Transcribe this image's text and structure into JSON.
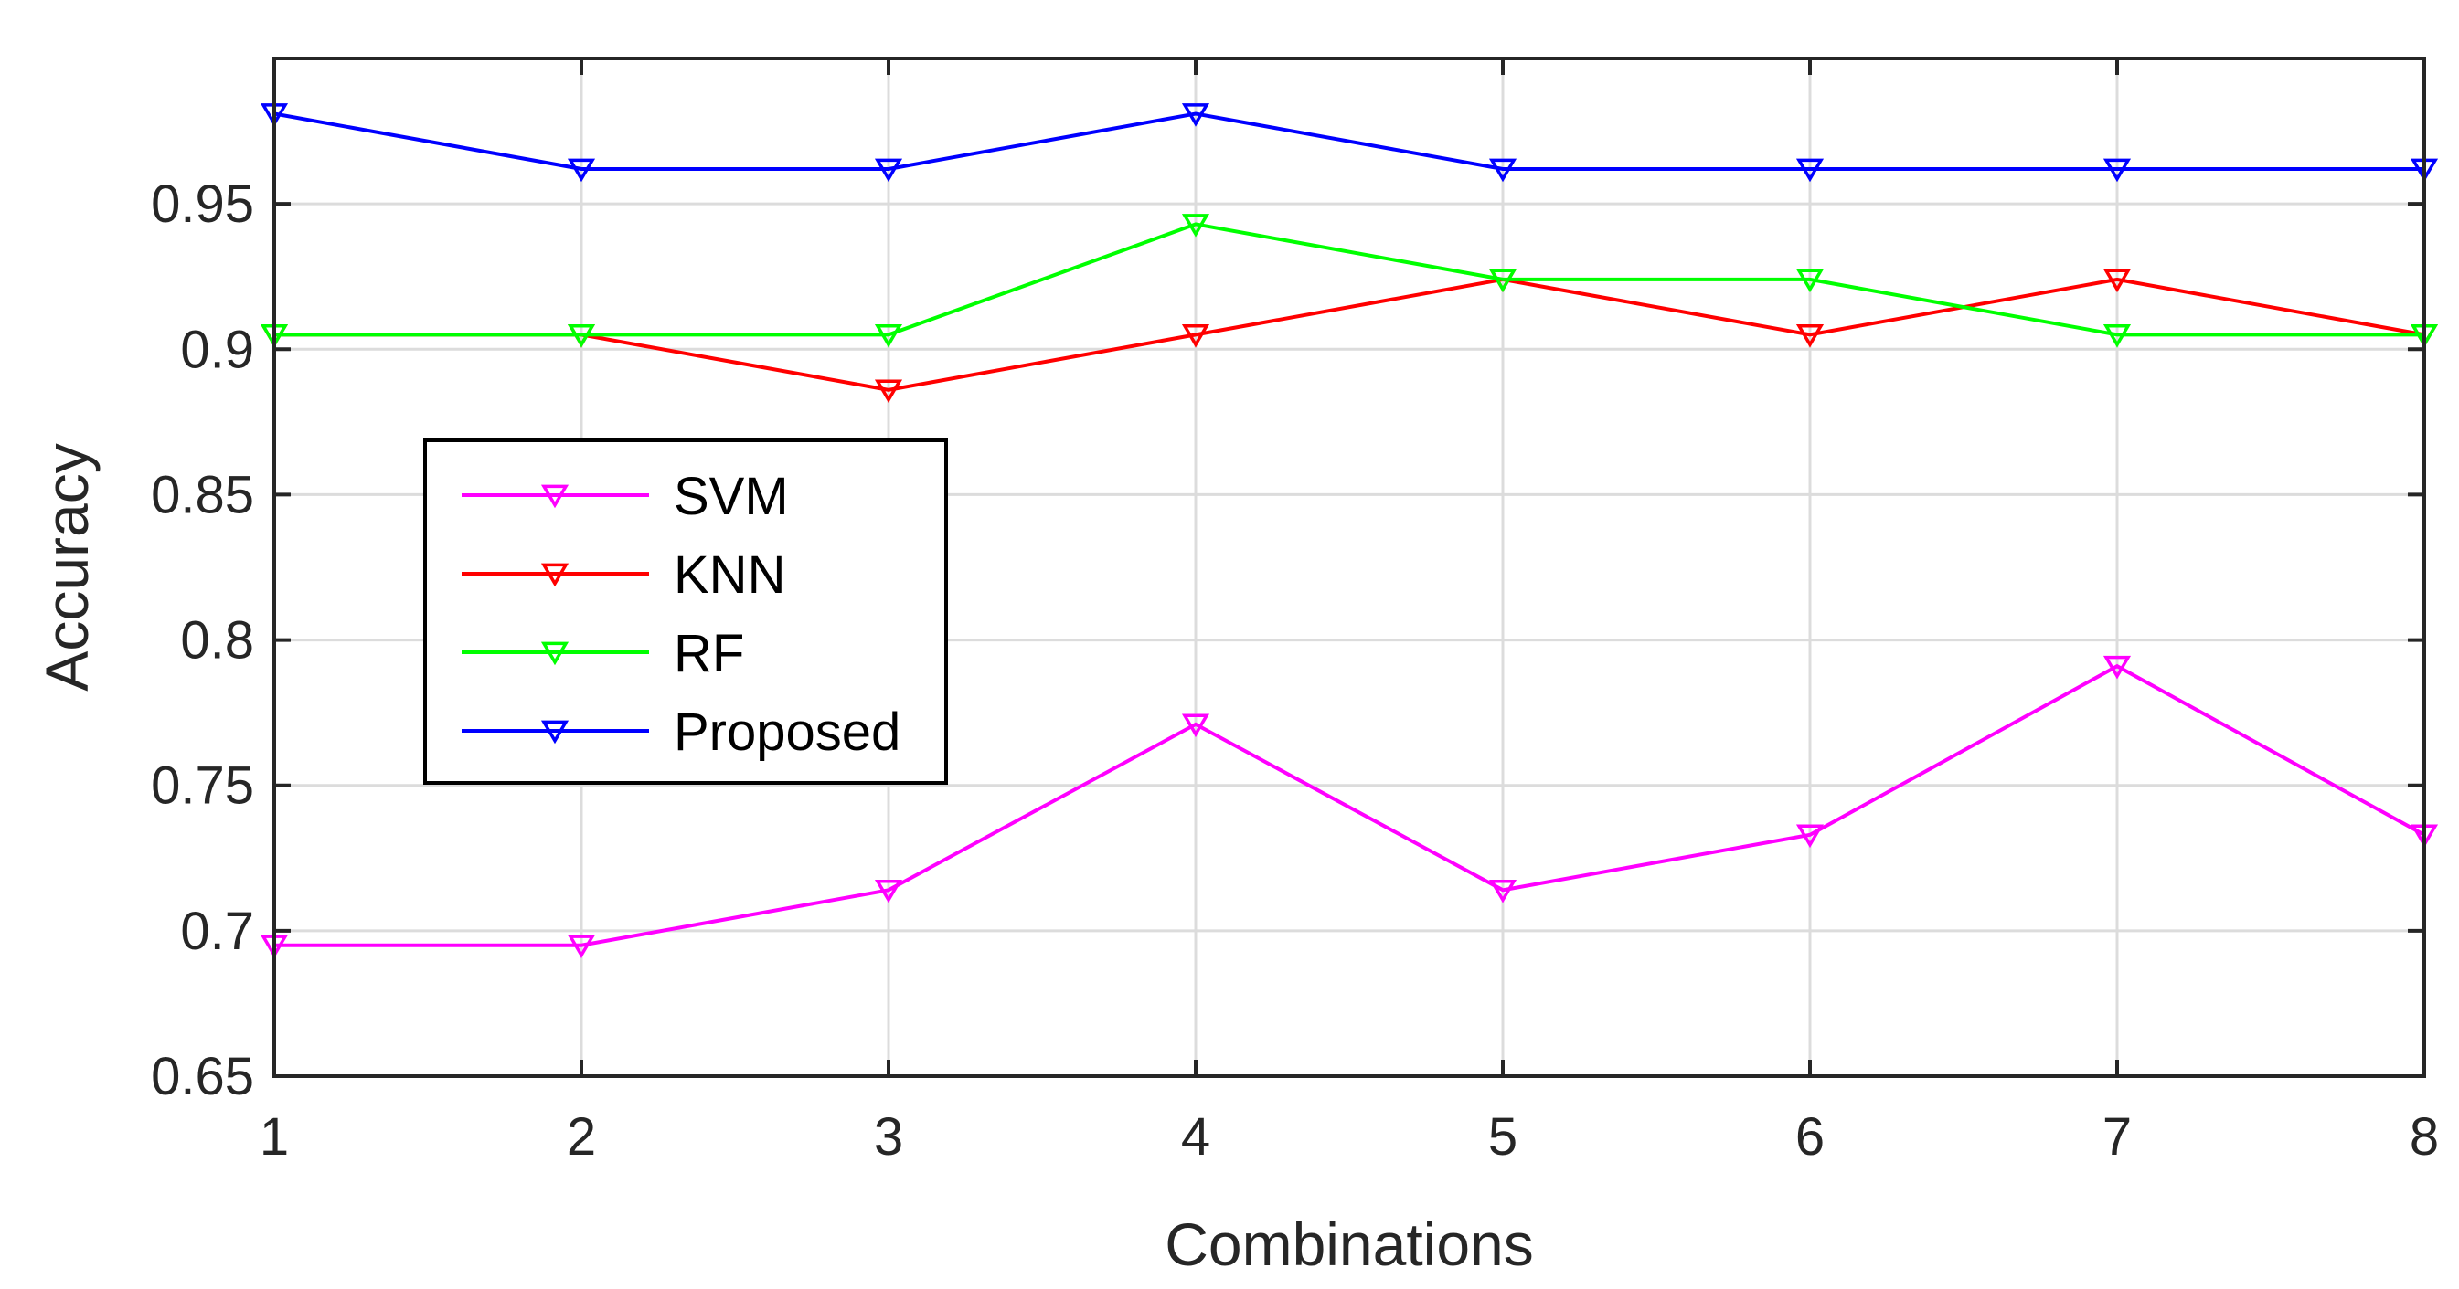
{
  "chart_data": {
    "type": "line",
    "title": "",
    "xlabel": "Combinations",
    "ylabel": "Accuracy",
    "x": [
      1,
      2,
      3,
      4,
      5,
      6,
      7,
      8
    ],
    "xlim": [
      1,
      8
    ],
    "ylim": [
      0.65,
      1.0
    ],
    "xticks": [
      1,
      2,
      3,
      4,
      5,
      6,
      7,
      8
    ],
    "xtick_labels": [
      "1",
      "2",
      "3",
      "4",
      "5",
      "6",
      "7",
      "8"
    ],
    "yticks": [
      0.65,
      0.7,
      0.75,
      0.8,
      0.85,
      0.9,
      0.95
    ],
    "ytick_labels": [
      "0.65",
      "0.7",
      "0.75",
      "0.8",
      "0.85",
      "0.9",
      "0.95"
    ],
    "grid": true,
    "legend_position": "middle-left",
    "marker": "triangle-down",
    "series": [
      {
        "name": "SVM",
        "color": "#ff00ff",
        "values": [
          0.695,
          0.695,
          0.714,
          0.771,
          0.714,
          0.733,
          0.791,
          0.733
        ]
      },
      {
        "name": "KNN",
        "color": "#ff0000",
        "values": [
          0.905,
          0.905,
          0.886,
          0.905,
          0.924,
          0.905,
          0.924,
          0.905
        ]
      },
      {
        "name": "RF",
        "color": "#00ff00",
        "values": [
          0.905,
          0.905,
          0.905,
          0.943,
          0.924,
          0.924,
          0.905,
          0.905
        ]
      },
      {
        "name": "Proposed",
        "color": "#0000ff",
        "values": [
          0.981,
          0.962,
          0.962,
          0.981,
          0.962,
          0.962,
          0.962,
          0.962
        ]
      }
    ]
  }
}
